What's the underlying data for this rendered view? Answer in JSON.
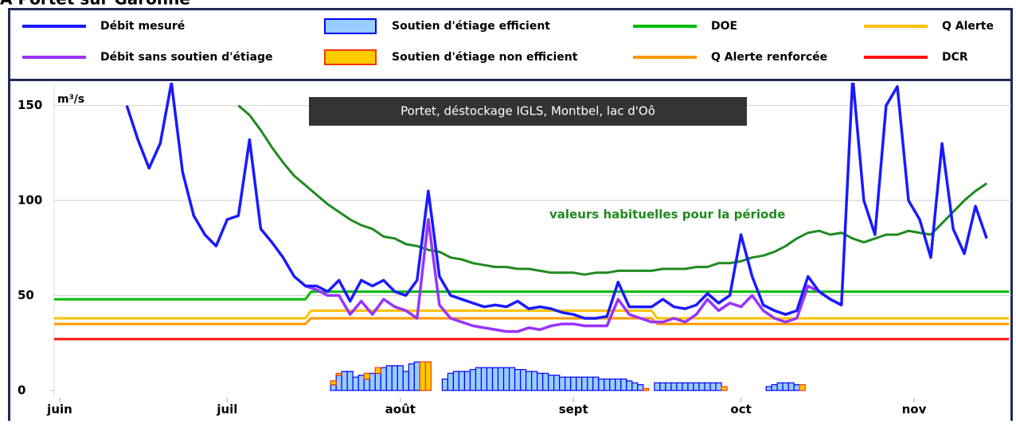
{
  "page_title": "A Portet sur Garonne",
  "chart_data": {
    "type": "line",
    "title": "Portet, déstockage IGLS, Montbel, lac d'Oô",
    "y_unit": "m³/s",
    "xlim": [
      -1,
      170
    ],
    "xticks": [
      {
        "value": 0,
        "label": "juin"
      },
      {
        "value": 30,
        "label": "juil"
      },
      {
        "value": 61,
        "label": "août"
      },
      {
        "value": 92,
        "label": "sept"
      },
      {
        "value": 122,
        "label": "oct"
      },
      {
        "value": 153,
        "label": "nov"
      }
    ],
    "ylim": [
      -16,
      162
    ],
    "yticks": [
      0,
      50,
      100,
      150
    ],
    "grid": true,
    "x": [
      12,
      14,
      16,
      18,
      20,
      22,
      24,
      26,
      28,
      30,
      32,
      34,
      36,
      38,
      40,
      42,
      44,
      46,
      48,
      50,
      52,
      54,
      56,
      58,
      60,
      62,
      64,
      66,
      68,
      70,
      72,
      74,
      76,
      78,
      80,
      82,
      84,
      86,
      88,
      90,
      92,
      94,
      96,
      98,
      100,
      102,
      104,
      106,
      108,
      110,
      112,
      114,
      116,
      118,
      120,
      122,
      124,
      126,
      128,
      130,
      132,
      134,
      136,
      138,
      140,
      142,
      144,
      146,
      148,
      150,
      152,
      154,
      156,
      158,
      160,
      162,
      164,
      166
    ],
    "series": [
      {
        "name": "Débit mesuré",
        "type": "line",
        "color": "#1a1aff",
        "values": [
          150,
          132,
          117,
          130,
          162,
          115,
          92,
          82,
          76,
          90,
          92,
          132,
          85,
          78,
          70,
          60,
          55,
          55,
          52,
          58,
          47,
          58,
          55,
          58,
          52,
          50,
          58,
          105,
          60,
          50,
          48,
          46,
          44,
          45,
          44,
          47,
          43,
          44,
          43,
          41,
          40,
          38,
          38,
          39,
          57,
          44,
          44,
          44,
          48,
          44,
          43,
          45,
          51,
          46,
          50,
          82,
          60,
          45,
          42,
          40,
          42,
          60,
          52,
          48,
          45,
          165,
          100,
          82,
          150,
          160,
          100,
          90,
          70,
          130,
          85,
          72,
          97,
          80
        ]
      },
      {
        "name": "Débit sans soutien d'étiage",
        "type": "line",
        "color": "#9933ff",
        "values": [
          null,
          null,
          null,
          null,
          null,
          null,
          null,
          null,
          null,
          null,
          null,
          null,
          null,
          null,
          null,
          null,
          55,
          53,
          50,
          50,
          40,
          47,
          40,
          48,
          44,
          42,
          38,
          90,
          45,
          38,
          36,
          34,
          33,
          32,
          31,
          31,
          33,
          32,
          34,
          35,
          35,
          34,
          34,
          34,
          48,
          40,
          38,
          36,
          36,
          38,
          36,
          40,
          48,
          42,
          46,
          44,
          50,
          42,
          38,
          36,
          38,
          55,
          52,
          48,
          45,
          null,
          null,
          null,
          null,
          null,
          null,
          null,
          null,
          null,
          null,
          null,
          null,
          null
        ]
      },
      {
        "name": "Soutien d'étiage efficient",
        "type": "bar",
        "fill": "#99ccff",
        "color": "#0000ff",
        "x": [
          49,
          50,
          51,
          52,
          53,
          54,
          55,
          56,
          57,
          58,
          59,
          60,
          61,
          62,
          63,
          64,
          65,
          66,
          69,
          70,
          71,
          72,
          73,
          74,
          75,
          76,
          77,
          78,
          79,
          80,
          81,
          82,
          83,
          84,
          85,
          86,
          87,
          88,
          89,
          90,
          91,
          92,
          93,
          94,
          95,
          96,
          97,
          98,
          99,
          100,
          101,
          102,
          103,
          104,
          105,
          107,
          108,
          109,
          110,
          111,
          112,
          113,
          114,
          115,
          116,
          117,
          118,
          119,
          127,
          128,
          129,
          130,
          131,
          132,
          133
        ],
        "values": [
          3,
          8,
          10,
          10,
          7,
          8,
          6,
          9,
          9,
          12,
          13,
          13,
          13,
          10,
          14,
          15,
          0,
          0,
          6,
          9,
          10,
          10,
          10,
          11,
          12,
          12,
          12,
          12,
          12,
          12,
          12,
          11,
          11,
          10,
          10,
          9,
          9,
          8,
          8,
          7,
          7,
          7,
          7,
          7,
          7,
          7,
          6,
          6,
          6,
          6,
          6,
          5,
          4,
          3,
          0,
          4,
          4,
          4,
          4,
          4,
          4,
          4,
          4,
          4,
          4,
          4,
          4,
          0,
          2,
          3,
          4,
          4,
          4,
          3,
          0
        ]
      },
      {
        "name": "Soutien d'étiage non efficient",
        "type": "bar",
        "stack_on": 2,
        "fill": "#ffcc00",
        "color": "#ff3300",
        "x": [
          49,
          50,
          51,
          52,
          53,
          54,
          55,
          56,
          57,
          58,
          59,
          60,
          61,
          62,
          63,
          64,
          65,
          66,
          69,
          70,
          71,
          72,
          73,
          74,
          75,
          76,
          77,
          78,
          79,
          80,
          81,
          82,
          83,
          84,
          85,
          86,
          87,
          88,
          89,
          90,
          91,
          92,
          93,
          94,
          95,
          96,
          97,
          98,
          99,
          100,
          101,
          102,
          103,
          104,
          105,
          107,
          108,
          109,
          110,
          111,
          112,
          113,
          114,
          115,
          116,
          117,
          118,
          119,
          127,
          128,
          129,
          130,
          131,
          132,
          133
        ],
        "values": [
          2,
          1,
          0,
          0,
          0,
          0,
          3,
          0,
          3,
          0,
          0,
          0,
          0,
          0,
          0,
          0,
          15,
          15,
          0,
          0,
          0,
          0,
          0,
          0,
          0,
          0,
          0,
          0,
          0,
          0,
          0,
          0,
          0,
          0,
          0,
          0,
          0,
          0,
          0,
          0,
          0,
          0,
          0,
          0,
          0,
          0,
          0,
          0,
          0,
          0,
          0,
          0,
          0,
          0,
          1,
          0,
          0,
          0,
          0,
          0,
          0,
          0,
          0,
          0,
          0,
          0,
          0,
          2,
          0,
          0,
          0,
          0,
          0,
          0,
          3
        ]
      },
      {
        "name": "DOE",
        "type": "line",
        "color": "#00bb00",
        "x": [
          -1,
          44,
          45,
          170
        ],
        "values": [
          48,
          48,
          52,
          52
        ]
      },
      {
        "name": "Q Alerte renforcée",
        "type": "line",
        "color": "#ff9900",
        "x": [
          -1,
          44,
          45,
          106,
          107,
          170
        ],
        "values": [
          35,
          35,
          38,
          38,
          35,
          35
        ]
      },
      {
        "name": "Q Alerte",
        "type": "line",
        "color": "#ffc000",
        "x": [
          -1,
          44,
          45,
          106,
          107,
          170
        ],
        "values": [
          38,
          38,
          42,
          42,
          38,
          38
        ]
      },
      {
        "name": "DCR",
        "type": "line",
        "color": "#ff1111",
        "x": [
          -1,
          170
        ],
        "values": [
          27,
          27
        ]
      }
    ],
    "reference_line": {
      "label": "valeurs habituelles pour la période",
      "color": "#1e8a1e",
      "values": [
        null,
        null,
        null,
        null,
        null,
        null,
        null,
        null,
        null,
        null,
        150,
        145,
        137,
        128,
        120,
        113,
        108,
        103,
        98,
        94,
        90,
        87,
        85,
        81,
        80,
        77,
        76,
        74,
        73,
        70,
        69,
        67,
        66,
        65,
        65,
        64,
        64,
        63,
        62,
        62,
        62,
        61,
        62,
        62,
        63,
        63,
        63,
        63,
        64,
        64,
        64,
        65,
        65,
        67,
        67,
        68,
        70,
        71,
        73,
        76,
        80,
        83,
        84,
        82,
        83,
        80,
        78,
        80,
        82,
        82,
        84,
        83,
        82,
        88,
        94,
        100,
        105,
        109
      ]
    }
  }
}
